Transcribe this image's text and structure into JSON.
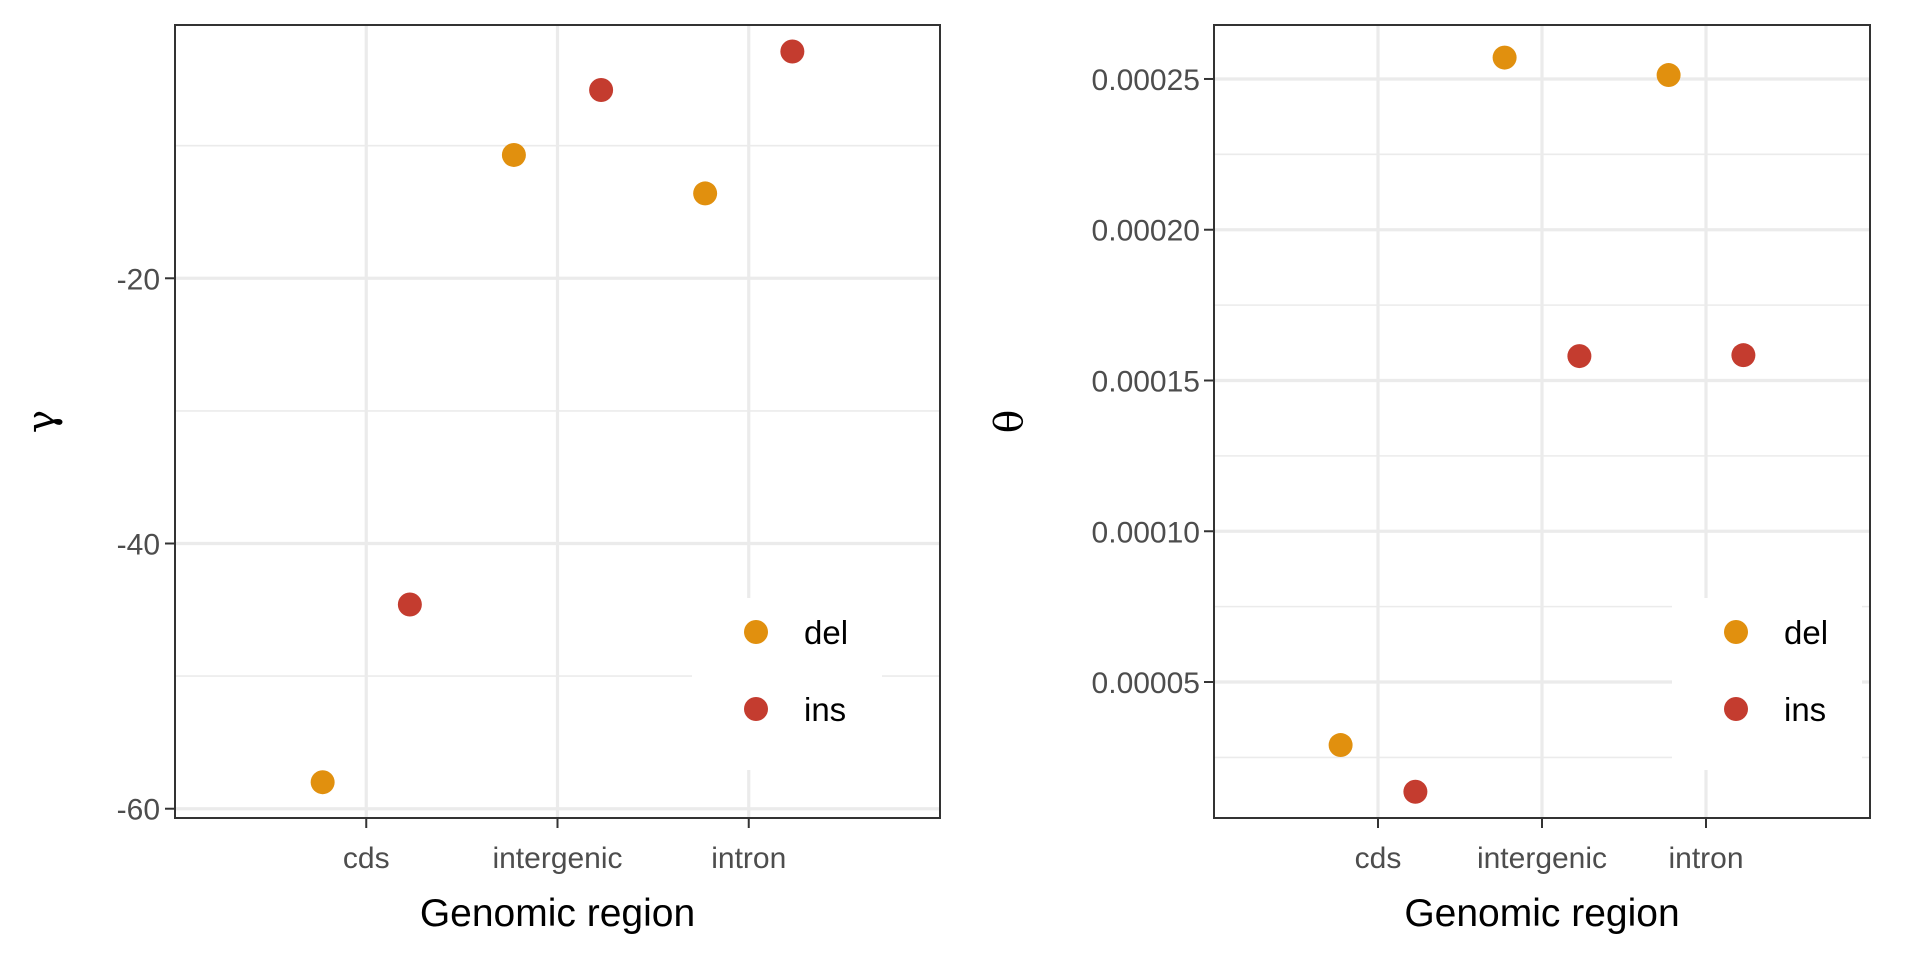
{
  "chart_data": [
    {
      "type": "scatter",
      "categories": [
        "cds",
        "intergenic",
        "intron"
      ],
      "xlabel": "Genomic region",
      "ylabel": "γ",
      "ylim": [
        -60.7,
        -0.9
      ],
      "yticks": [
        -20,
        -40,
        -60
      ],
      "ytick_labels": [
        "-20",
        "-40",
        "-60"
      ],
      "grid": true,
      "legend_position": "bottom-right",
      "series": [
        {
          "name": "del",
          "color": "#E1900E",
          "values": [
            -58.0,
            -10.7,
            -13.6
          ]
        },
        {
          "name": "ins",
          "color": "#C43C2F",
          "values": [
            -44.6,
            -5.8,
            -2.9
          ]
        }
      ]
    },
    {
      "type": "scatter",
      "categories": [
        "cds",
        "intergenic",
        "intron"
      ],
      "xlabel": "Genomic region",
      "ylabel": "θ",
      "ylim": [
        4.9e-06,
        0.0002679
      ],
      "yticks": [
        5e-05,
        0.0001,
        0.00015,
        0.0002,
        0.00025
      ],
      "ytick_labels": [
        "0.00005",
        "0.00010",
        "0.00015",
        "0.00020",
        "0.00025"
      ],
      "grid": true,
      "legend_position": "bottom-right",
      "series": [
        {
          "name": "del",
          "color": "#E1900E",
          "values": [
            2.91e-05,
            0.0002571,
            0.0002513
          ]
        },
        {
          "name": "ins",
          "color": "#C43C2F",
          "values": [
            1.36e-05,
            0.0001581,
            0.0001584
          ]
        }
      ]
    }
  ]
}
